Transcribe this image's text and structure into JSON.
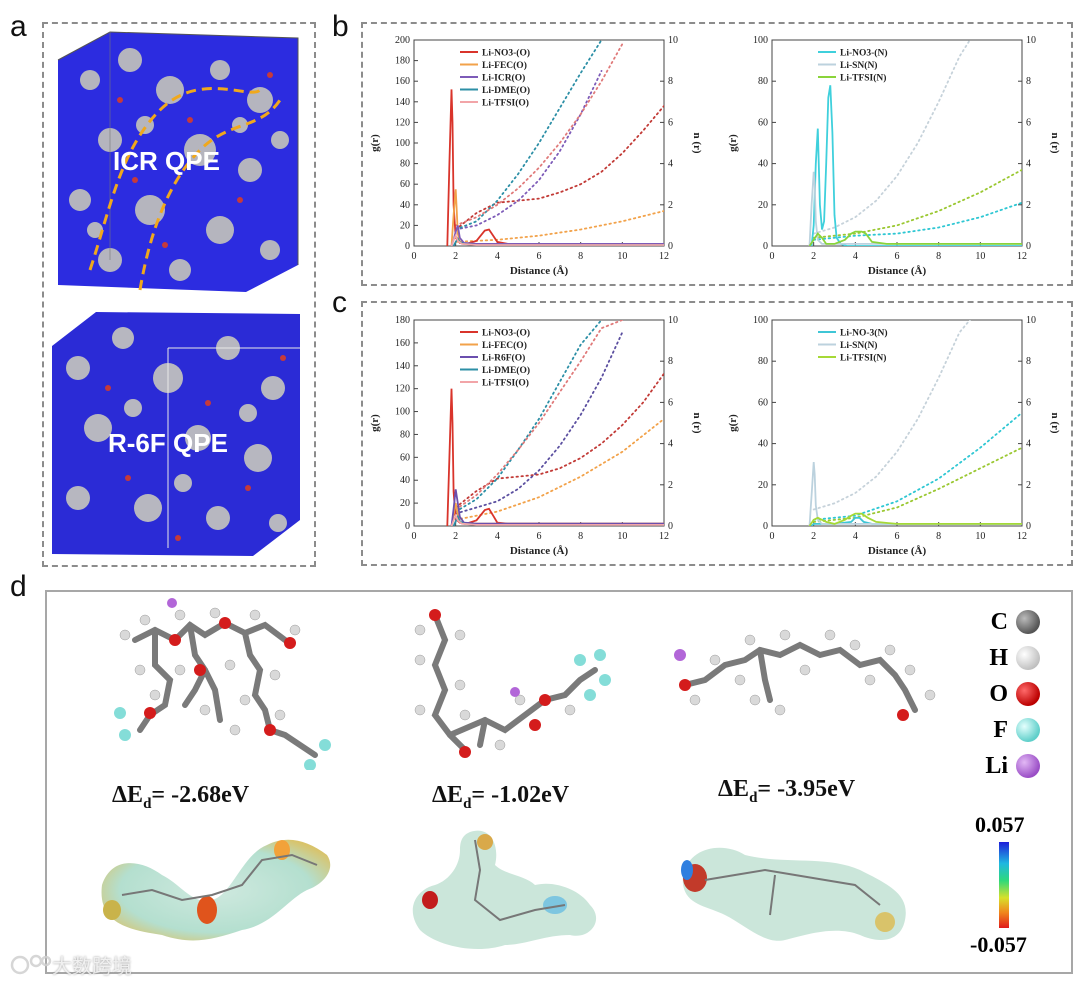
{
  "panel_labels": {
    "a": "a",
    "b": "b",
    "c": "c",
    "d": "d"
  },
  "panel_a": {
    "box1_label": "ICR QPE",
    "box2_label": "R-6F QPE"
  },
  "chart_data": [
    {
      "id": "b-left",
      "type": "line",
      "xlabel": "Distance (Å)",
      "ylabel": "g(r)",
      "y2label": "n (r)",
      "xlim": [
        0,
        12
      ],
      "ylim": [
        0,
        200
      ],
      "y2lim": [
        0,
        10
      ],
      "xticks": [
        "0",
        "2",
        "4",
        "6",
        "8",
        "10",
        "12"
      ],
      "yticks": [
        "0",
        "20",
        "40",
        "60",
        "80",
        "100",
        "120",
        "140",
        "160",
        "180",
        "200"
      ],
      "y2ticks": [
        "0",
        "2",
        "4",
        "6",
        "8",
        "10"
      ],
      "legend_position": "top-left",
      "series": [
        {
          "name": "Li-NO3-(O)",
          "color": "#d9342b",
          "x": [
            1.6,
            1.7,
            1.8,
            1.85,
            1.9,
            2.0,
            2.2,
            2.5,
            3.0,
            3.4,
            3.6,
            3.8,
            4.0,
            4.5,
            6,
            8,
            10,
            12
          ],
          "y": [
            0,
            80,
            152,
            120,
            40,
            8,
            3,
            2,
            5,
            15,
            16,
            10,
            4,
            2,
            2,
            2,
            2,
            2
          ]
        },
        {
          "name": "Li-FEC(O)",
          "color": "#f2a24a",
          "x": [
            1.8,
            1.9,
            2.0,
            2.05,
            2.1,
            2.2,
            2.4,
            3,
            4,
            6,
            12
          ],
          "y": [
            0,
            30,
            55,
            35,
            12,
            4,
            2,
            2,
            2,
            2,
            2
          ]
        },
        {
          "name": "Li-ICR(O)",
          "color": "#7d5bb8",
          "x": [
            1.8,
            1.9,
            2.0,
            2.1,
            2.2,
            2.4,
            3,
            4,
            6,
            12
          ],
          "y": [
            0,
            6,
            14,
            20,
            8,
            3,
            2,
            2,
            2,
            2
          ]
        },
        {
          "name": "Li-DME(O)",
          "color": "#2c8fa6",
          "x": [
            1.9,
            2.0,
            2.1,
            2.2,
            2.4,
            3,
            5,
            12
          ],
          "y": [
            0,
            4,
            7,
            4,
            2,
            1,
            1,
            1
          ]
        },
        {
          "name": "Li-TFSI(O)",
          "color": "#f2a5a8",
          "x": [
            1.8,
            1.9,
            2.0,
            2.1,
            2.3,
            3,
            5,
            12
          ],
          "y": [
            0,
            6,
            10,
            5,
            2,
            1,
            1,
            1
          ]
        }
      ],
      "n_series": [
        {
          "name": "Li-NO3-(O)",
          "color": "#c23a36",
          "x": [
            2,
            3,
            4,
            5,
            6,
            7,
            8,
            9,
            10,
            11,
            12
          ],
          "y": [
            0.8,
            1.6,
            2.1,
            2.2,
            2.3,
            2.6,
            3.0,
            3.6,
            4.5,
            5.6,
            6.8
          ]
        },
        {
          "name": "Li-FEC(O)",
          "color": "#f2a24a",
          "x": [
            2,
            4,
            6,
            8,
            10,
            12
          ],
          "y": [
            0.2,
            0.3,
            0.5,
            0.8,
            1.2,
            1.7
          ]
        },
        {
          "name": "Li-ICR(O)",
          "color": "#7d5bb8",
          "x": [
            2,
            3,
            4,
            5,
            6,
            7,
            8,
            9
          ],
          "y": [
            0.8,
            1.0,
            1.5,
            2.2,
            3.2,
            4.6,
            6.4,
            8.5
          ]
        },
        {
          "name": "Li-DME(O)",
          "color": "#2c8fa6",
          "x": [
            2,
            3,
            4,
            5,
            6,
            7,
            8,
            9
          ],
          "y": [
            0.8,
            1.2,
            2.2,
            3.5,
            5.0,
            6.7,
            8.4,
            10
          ]
        },
        {
          "name": "Li-TFSI(O)",
          "color": "#e07a7a",
          "x": [
            2,
            3,
            4,
            5,
            6,
            7,
            8,
            9,
            10
          ],
          "y": [
            1.0,
            1.4,
            2.0,
            2.8,
            3.8,
            5.0,
            6.4,
            8.0,
            9.8
          ]
        }
      ]
    },
    {
      "id": "b-right",
      "type": "line",
      "xlabel": "Distance (Å)",
      "ylabel": "g(r)",
      "y2label": "n (r)",
      "xlim": [
        0,
        12
      ],
      "ylim": [
        0,
        100
      ],
      "y2lim": [
        0,
        10
      ],
      "xticks": [
        "0",
        "2",
        "4",
        "6",
        "8",
        "10",
        "12"
      ],
      "yticks": [
        "0",
        "20",
        "40",
        "60",
        "80",
        "100"
      ],
      "y2ticks": [
        "0",
        "2",
        "4",
        "6",
        "8",
        "10"
      ],
      "legend_position": "top-left",
      "series": [
        {
          "name": "Li-NO3-(N)",
          "color": "#3fd0dc",
          "x": [
            1.9,
            2.0,
            2.1,
            2.2,
            2.3,
            2.4,
            2.5,
            2.6,
            2.7,
            2.8,
            2.9,
            3.0,
            3.1,
            3.3,
            3.6,
            12
          ],
          "y": [
            0,
            10,
            40,
            57,
            20,
            8,
            12,
            40,
            72,
            78,
            55,
            15,
            4,
            1,
            0,
            0
          ]
        },
        {
          "name": "Li-SN(N)",
          "color": "#bcd2de",
          "x": [
            1.8,
            1.9,
            2.0,
            2.05,
            2.1,
            2.2,
            2.4,
            3,
            12
          ],
          "y": [
            0,
            20,
            36,
            30,
            12,
            3,
            1,
            1,
            1
          ]
        },
        {
          "name": "Li-TFSI(N)",
          "color": "#8ad43a",
          "x": [
            1.8,
            2.0,
            2.2,
            2.4,
            2.6,
            3.0,
            3.5,
            3.8,
            4.0,
            4.3,
            4.5,
            4.8,
            5.5,
            6,
            12
          ],
          "y": [
            0,
            3,
            6,
            4,
            1,
            1,
            3,
            6,
            7,
            7,
            6,
            2,
            1,
            1,
            1
          ]
        }
      ],
      "n_series": [
        {
          "name": "Li-NO3-(N)",
          "color": "#2ec7d3",
          "x": [
            2,
            4,
            6,
            8,
            10,
            12
          ],
          "y": [
            0.3,
            0.5,
            0.6,
            0.9,
            1.4,
            2.1
          ]
        },
        {
          "name": "Li-SN(N)",
          "color": "#c6d2da",
          "x": [
            2,
            3,
            4,
            5,
            6,
            7,
            8,
            9,
            9.5
          ],
          "y": [
            0.6,
            0.9,
            1.4,
            2.2,
            3.4,
            5.0,
            7.0,
            9.2,
            10
          ]
        },
        {
          "name": "Li-TFSI(N)",
          "color": "#9bc832",
          "x": [
            2,
            4,
            6,
            8,
            10,
            12
          ],
          "y": [
            0.4,
            0.6,
            1.0,
            1.7,
            2.6,
            3.7
          ]
        }
      ]
    },
    {
      "id": "c-left",
      "type": "line",
      "xlabel": "Distance (Å)",
      "ylabel": "g(r)",
      "y2label": "n (r)",
      "xlim": [
        0,
        12
      ],
      "ylim": [
        0,
        180
      ],
      "y2lim": [
        0,
        10
      ],
      "xticks": [
        "0",
        "2",
        "4",
        "6",
        "8",
        "10",
        "12"
      ],
      "yticks": [
        "0",
        "20",
        "40",
        "60",
        "80",
        "100",
        "120",
        "140",
        "160",
        "180"
      ],
      "y2ticks": [
        "0",
        "2",
        "4",
        "6",
        "8",
        "10"
      ],
      "legend_position": "top-left",
      "series": [
        {
          "name": "Li-NO3-(O)",
          "color": "#d9342b",
          "x": [
            1.6,
            1.7,
            1.8,
            1.85,
            1.9,
            2.0,
            2.2,
            2.5,
            3.0,
            3.4,
            3.6,
            3.8,
            4.0,
            4.5,
            6,
            12
          ],
          "y": [
            0,
            60,
            120,
            90,
            30,
            6,
            3,
            2,
            5,
            14,
            15,
            9,
            3,
            2,
            2,
            2
          ]
        },
        {
          "name": "Li-FEC(O)",
          "color": "#f2a24a",
          "x": [
            1.8,
            1.9,
            2.0,
            2.1,
            2.2,
            2.4,
            3,
            4,
            12
          ],
          "y": [
            0,
            10,
            20,
            10,
            4,
            2,
            2,
            2,
            2
          ]
        },
        {
          "name": "Li-R6F(O)",
          "color": "#6b4fae",
          "x": [
            1.8,
            1.9,
            2.0,
            2.1,
            2.2,
            2.4,
            3,
            4,
            12
          ],
          "y": [
            0,
            15,
            32,
            20,
            8,
            3,
            2,
            2,
            2
          ]
        },
        {
          "name": "Li-DME(O)",
          "color": "#2c8fa6",
          "x": [
            1.9,
            2.0,
            2.1,
            2.2,
            2.4,
            3,
            12
          ],
          "y": [
            0,
            4,
            8,
            4,
            2,
            1,
            1
          ]
        },
        {
          "name": "Li-TFSI(O)",
          "color": "#f2a5a8",
          "x": [
            1.8,
            1.9,
            2.0,
            2.1,
            2.3,
            3,
            12
          ],
          "y": [
            0,
            5,
            9,
            5,
            2,
            1,
            1
          ]
        }
      ],
      "n_series": [
        {
          "name": "Li-NO3-(O)",
          "color": "#c23a36",
          "x": [
            2,
            3,
            4,
            5,
            6,
            7,
            8,
            9,
            10,
            11,
            12
          ],
          "y": [
            0.9,
            1.7,
            2.3,
            2.4,
            2.5,
            2.8,
            3.3,
            4.0,
            4.9,
            6.0,
            7.4
          ]
        },
        {
          "name": "Li-FEC(O)",
          "color": "#f2a24a",
          "x": [
            2,
            4,
            6,
            8,
            10,
            12
          ],
          "y": [
            0.3,
            0.7,
            1.4,
            2.4,
            3.6,
            5.2
          ]
        },
        {
          "name": "Li-R6F(O)",
          "color": "#5b4fa0",
          "x": [
            2,
            3,
            4,
            5,
            6,
            7,
            8,
            9,
            10
          ],
          "y": [
            0.6,
            0.9,
            1.2,
            1.8,
            2.7,
            3.9,
            5.4,
            7.2,
            9.4
          ]
        },
        {
          "name": "Li-DME(O)",
          "color": "#2c8fa6",
          "x": [
            2,
            3,
            4,
            5,
            6,
            7,
            8,
            9
          ],
          "y": [
            0.7,
            1.3,
            2.3,
            3.7,
            5.2,
            7.0,
            8.8,
            10
          ]
        },
        {
          "name": "Li-TFSI(O)",
          "color": "#e07a7a",
          "x": [
            2,
            3,
            4,
            5,
            6,
            7,
            8,
            9,
            10
          ],
          "y": [
            0.8,
            1.5,
            2.5,
            3.7,
            5.0,
            6.5,
            8.0,
            9.6,
            10
          ]
        }
      ]
    },
    {
      "id": "c-right",
      "type": "line",
      "xlabel": "Distance (Å)",
      "ylabel": "g(r)",
      "y2label": "n (r)",
      "xlim": [
        0,
        12
      ],
      "ylim": [
        0,
        100
      ],
      "y2lim": [
        0,
        10
      ],
      "xticks": [
        "0",
        "2",
        "4",
        "6",
        "8",
        "10",
        "12"
      ],
      "yticks": [
        "0",
        "20",
        "40",
        "60",
        "80",
        "100"
      ],
      "y2ticks": [
        "0",
        "2",
        "4",
        "6",
        "8",
        "10"
      ],
      "legend_position": "top-left",
      "series": [
        {
          "name": "Li-NO-3(N)",
          "color": "#3fc6d6",
          "x": [
            1.9,
            2.0,
            2.2,
            3,
            3.8,
            4.0,
            4.2,
            4.4,
            4.8,
            12
          ],
          "y": [
            0,
            1,
            1,
            1,
            2,
            4,
            4,
            2,
            1,
            1
          ]
        },
        {
          "name": "Li-SN(N)",
          "color": "#bcd2de",
          "x": [
            1.8,
            1.9,
            2.0,
            2.05,
            2.1,
            2.2,
            2.4,
            3,
            12
          ],
          "y": [
            0,
            15,
            31,
            25,
            10,
            3,
            1,
            1,
            1
          ]
        },
        {
          "name": "Li-TFSI(N)",
          "color": "#a6d936",
          "x": [
            1.8,
            2.0,
            2.2,
            2.6,
            3.0,
            3.5,
            3.8,
            4.0,
            4.3,
            4.6,
            5,
            6,
            12
          ],
          "y": [
            0,
            3,
            4,
            2,
            1,
            3,
            5,
            6,
            6,
            4,
            2,
            1,
            1
          ]
        }
      ],
      "n_series": [
        {
          "name": "Li-NO-3(N)",
          "color": "#2ec7d3",
          "x": [
            2,
            4,
            6,
            8,
            10,
            12
          ],
          "y": [
            0.3,
            0.5,
            1.2,
            2.3,
            3.8,
            5.5
          ]
        },
        {
          "name": "Li-SN(N)",
          "color": "#c6d2da",
          "x": [
            2,
            3,
            4,
            5,
            6,
            7,
            8,
            9,
            9.5
          ],
          "y": [
            0.8,
            1.1,
            1.6,
            2.4,
            3.6,
            5.2,
            7.2,
            9.4,
            10
          ]
        },
        {
          "name": "Li-TFSI(N)",
          "color": "#9bc832",
          "x": [
            2,
            4,
            6,
            8,
            10,
            12
          ],
          "y": [
            0.2,
            0.4,
            0.9,
            1.8,
            2.8,
            3.8
          ]
        }
      ]
    }
  ],
  "panel_d": {
    "energies": [
      {
        "label": "ΔE",
        "sub": "d",
        "value": "= -2.68eV"
      },
      {
        "label": "ΔE",
        "sub": "d",
        "value": "= -1.02eV"
      },
      {
        "label": "ΔE",
        "sub": "d",
        "value": "= -3.95eV"
      }
    ],
    "legend": [
      {
        "label": "C",
        "color": "#6a6a6a"
      },
      {
        "label": "H",
        "color": "#e8e8e8"
      },
      {
        "label": "O",
        "color": "#d01c1c"
      },
      {
        "label": "F",
        "color": "#7fe0dc"
      },
      {
        "label": "Li",
        "color": "#b266d8"
      }
    ],
    "colorbar": {
      "max": "0.057",
      "min": "-0.057"
    }
  },
  "watermark": "大数跨境"
}
